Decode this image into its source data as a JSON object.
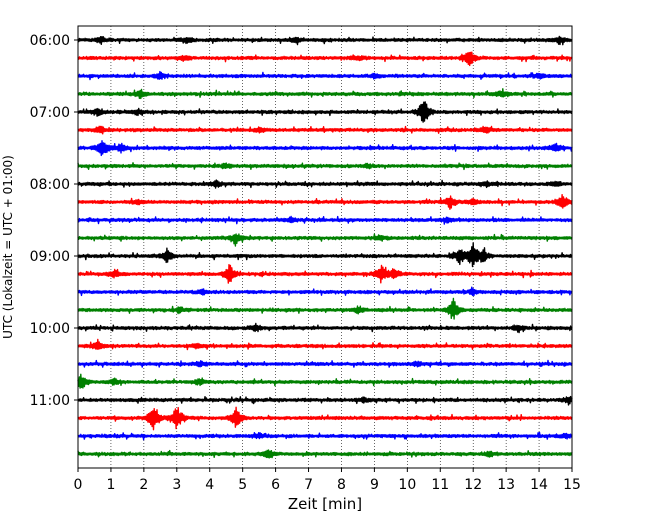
{
  "chart_data": {
    "type": "line",
    "title": "",
    "xlabel": "Zeit  [min]",
    "ylabel": "UTC (Lokalzeit = UTC + 01:00)",
    "xlim": [
      0,
      15
    ],
    "x_ticks": [
      "0",
      "1",
      "2",
      "3",
      "4",
      "5",
      "6",
      "7",
      "8",
      "9",
      "10",
      "11",
      "12",
      "13",
      "14",
      "15"
    ],
    "y_tick_labels": [
      "06:00",
      "07:00",
      "08:00",
      "09:00",
      "10:00",
      "11:00"
    ],
    "grid": "vertical dotted lines at each minute",
    "trace_interval_min": 15,
    "colors": [
      "#000000",
      "#ff0000",
      "#0000ff",
      "#008000"
    ],
    "series": [
      {
        "start": "06:00",
        "color": "#000000",
        "events": [
          [
            0.7,
            0.4
          ],
          [
            3.3,
            0.4
          ],
          [
            6.6,
            0.35
          ],
          [
            14.6,
            0.45
          ]
        ]
      },
      {
        "start": "06:15",
        "color": "#ff0000",
        "events": [
          [
            11.9,
            1.0
          ],
          [
            3.2,
            0.25
          ],
          [
            8.5,
            0.3
          ]
        ]
      },
      {
        "start": "06:30",
        "color": "#0000ff",
        "events": [
          [
            2.5,
            0.45
          ],
          [
            14.0,
            0.35
          ],
          [
            9.0,
            0.3
          ]
        ]
      },
      {
        "start": "06:45",
        "color": "#008000",
        "events": [
          [
            1.9,
            0.5
          ],
          [
            12.9,
            0.45
          ]
        ]
      },
      {
        "start": "07:00",
        "color": "#000000",
        "events": [
          [
            10.5,
            1.8
          ],
          [
            0.6,
            0.5
          ],
          [
            1.8,
            0.3
          ]
        ]
      },
      {
        "start": "07:15",
        "color": "#ff0000",
        "events": [
          [
            0.7,
            0.5
          ],
          [
            5.5,
            0.3
          ],
          [
            12.4,
            0.3
          ]
        ]
      },
      {
        "start": "07:30",
        "color": "#0000ff",
        "events": [
          [
            0.75,
            1.3
          ],
          [
            1.3,
            0.6
          ],
          [
            14.5,
            0.55
          ]
        ]
      },
      {
        "start": "07:45",
        "color": "#008000",
        "events": [
          [
            4.5,
            0.3
          ],
          [
            8.8,
            0.3
          ]
        ]
      },
      {
        "start": "08:00",
        "color": "#000000",
        "events": [
          [
            4.2,
            0.4
          ],
          [
            12.4,
            0.3
          ],
          [
            14.5,
            0.3
          ]
        ]
      },
      {
        "start": "08:15",
        "color": "#ff0000",
        "events": [
          [
            11.3,
            0.8
          ],
          [
            12.0,
            0.4
          ],
          [
            14.7,
            1.0
          ],
          [
            1.8,
            0.3
          ]
        ]
      },
      {
        "start": "08:30",
        "color": "#0000ff",
        "events": [
          [
            6.5,
            0.3
          ],
          [
            11.2,
            0.3
          ]
        ]
      },
      {
        "start": "08:45",
        "color": "#008000",
        "events": [
          [
            4.8,
            0.7
          ],
          [
            9.2,
            0.3
          ]
        ]
      },
      {
        "start": "09:00",
        "color": "#000000",
        "events": [
          [
            11.6,
            1.0
          ],
          [
            12.0,
            1.5
          ],
          [
            12.3,
            0.8
          ],
          [
            2.7,
            0.9
          ]
        ]
      },
      {
        "start": "09:15",
        "color": "#ff0000",
        "events": [
          [
            4.6,
            1.3
          ],
          [
            9.2,
            1.2
          ],
          [
            9.6,
            0.7
          ],
          [
            1.1,
            0.45
          ]
        ]
      },
      {
        "start": "09:30",
        "color": "#0000ff",
        "events": [
          [
            3.8,
            0.3
          ],
          [
            12.0,
            0.3
          ]
        ]
      },
      {
        "start": "09:45",
        "color": "#008000",
        "events": [
          [
            11.4,
            1.3
          ],
          [
            8.5,
            0.4
          ],
          [
            3.1,
            0.3
          ]
        ]
      },
      {
        "start": "10:00",
        "color": "#000000",
        "events": [
          [
            5.4,
            0.5
          ],
          [
            13.4,
            0.3
          ]
        ]
      },
      {
        "start": "10:15",
        "color": "#ff0000",
        "events": [
          [
            0.6,
            0.6
          ],
          [
            3.6,
            0.3
          ]
        ]
      },
      {
        "start": "10:30",
        "color": "#0000ff",
        "events": [
          [
            10.3,
            0.3
          ],
          [
            3.7,
            0.3
          ]
        ]
      },
      {
        "start": "10:45",
        "color": "#008000",
        "events": [
          [
            0.1,
            0.9
          ],
          [
            1.1,
            0.4
          ],
          [
            3.7,
            0.35
          ]
        ]
      },
      {
        "start": "11:00",
        "color": "#000000",
        "events": [
          [
            8.7,
            0.3
          ],
          [
            14.9,
            0.45
          ]
        ]
      },
      {
        "start": "11:15",
        "color": "#ff0000",
        "events": [
          [
            2.3,
            1.7
          ],
          [
            3.0,
            1.7
          ],
          [
            4.8,
            1.3
          ]
        ]
      },
      {
        "start": "11:30",
        "color": "#0000ff",
        "events": [
          [
            5.5,
            0.3
          ],
          [
            14.8,
            0.3
          ]
        ]
      },
      {
        "start": "11:45",
        "color": "#008000",
        "events": [
          [
            5.8,
            0.6
          ],
          [
            12.5,
            0.3
          ]
        ]
      }
    ]
  }
}
